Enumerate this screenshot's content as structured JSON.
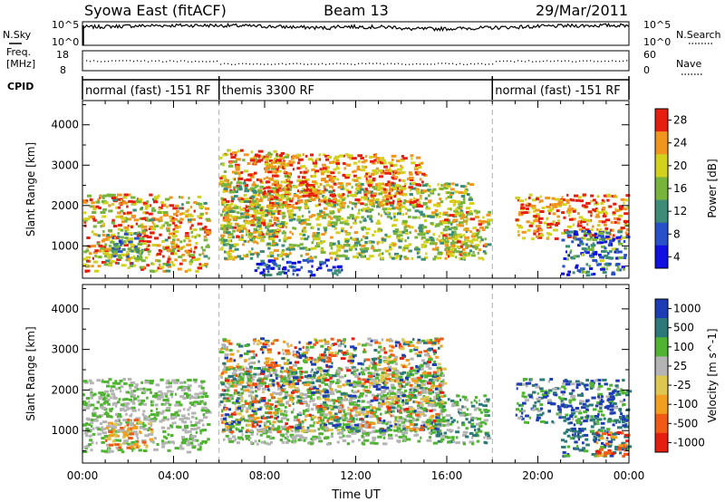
{
  "header": {
    "station": "Syowa East (fitACF)",
    "beam": "Beam 13",
    "date": "29/Mar/2011"
  },
  "strip_labels": {
    "nsky": "N.Sky",
    "nsearch": "N.Search",
    "freq_line1": "Freq.",
    "freq_line2": "[MHz]",
    "nave": "Nave",
    "cpid": "CPID",
    "sky_hi": "10^5",
    "sky_lo": "10^0",
    "search_hi": "10^5",
    "search_lo": "10^0",
    "freq_hi": "18",
    "freq_lo": "8",
    "nave_hi": "60",
    "nave_lo": "0"
  },
  "modes": [
    {
      "label": "normal (fast) -151 RF",
      "start_hour": 0,
      "end_hour": 6
    },
    {
      "label": "themis 3300 RF",
      "start_hour": 6,
      "end_hour": 18
    },
    {
      "label": "normal (fast) -151 RF",
      "start_hour": 18,
      "end_hour": 24
    }
  ],
  "chart_data": [
    {
      "type": "heatmap",
      "name": "power",
      "xlabel": "Time UT",
      "ylabel": "Slant Range [km]",
      "xlim": [
        0,
        24
      ],
      "ylim": [
        200,
        4600
      ],
      "x_ticks": [
        "00:00",
        "04:00",
        "08:00",
        "12:00",
        "16:00",
        "20:00",
        "00:00"
      ],
      "y_ticks": [
        "1000",
        "2000",
        "3000",
        "4000"
      ],
      "y_tick_values": [
        1000,
        2000,
        3000,
        4000
      ],
      "colorbar": {
        "label": "Power [dB]",
        "ticks": [
          "4",
          "8",
          "12",
          "16",
          "20",
          "24",
          "28"
        ],
        "colors": [
          "#1010e0",
          "#2850c8",
          "#3c8c78",
          "#78b43c",
          "#d2d21e",
          "#f0961e",
          "#e61e10"
        ]
      },
      "regions": [
        {
          "x": [
            0.0,
            5.5
          ],
          "y": [
            400,
            2300
          ],
          "level_range": [
            0.0,
            0.6
          ]
        },
        {
          "x": [
            1.0,
            2.5
          ],
          "y": [
            600,
            1400
          ],
          "level_range": [
            0.3,
            0.9
          ]
        },
        {
          "x": [
            6.0,
            9.0
          ],
          "y": [
            1200,
            3400
          ],
          "level_range": [
            0.0,
            0.5
          ]
        },
        {
          "x": [
            6.0,
            17.0
          ],
          "y": [
            700,
            2600
          ],
          "level_range": [
            0.2,
            0.7
          ]
        },
        {
          "x": [
            7.5,
            11.5
          ],
          "y": [
            300,
            700
          ],
          "level_range": [
            0.6,
            1.0
          ]
        },
        {
          "x": [
            8.0,
            15.0
          ],
          "y": [
            2000,
            3300
          ],
          "level_range": [
            0.0,
            0.4
          ]
        },
        {
          "x": [
            15.5,
            17.8
          ],
          "y": [
            700,
            1900
          ],
          "level_range": [
            0.1,
            0.6
          ]
        },
        {
          "x": [
            19.0,
            23.9
          ],
          "y": [
            1200,
            2300
          ],
          "level_range": [
            0.0,
            0.4
          ]
        },
        {
          "x": [
            21.0,
            23.9
          ],
          "y": [
            300,
            1400
          ],
          "level_range": [
            0.4,
            1.0
          ]
        }
      ]
    },
    {
      "type": "heatmap",
      "name": "velocity",
      "xlabel": "Time UT",
      "ylabel": "Slant Range [km]",
      "xlim": [
        0,
        24
      ],
      "ylim": [
        200,
        4600
      ],
      "x_ticks": [
        "00:00",
        "04:00",
        "08:00",
        "12:00",
        "16:00",
        "20:00",
        "00:00"
      ],
      "y_ticks": [
        "1000",
        "2000",
        "3000",
        "4000"
      ],
      "y_tick_values": [
        1000,
        2000,
        3000,
        4000
      ],
      "colorbar": {
        "label": "Velocity [m s^-1]",
        "ticks": [
          "1000",
          "500",
          "100",
          "25",
          "-25",
          "-100",
          "-500",
          "-1000"
        ],
        "colors": [
          "#1e3cb4",
          "#2d7878",
          "#50b432",
          "#b4b4b4",
          "#dcc850",
          "#f0a01e",
          "#f05a14",
          "#e61e10"
        ]
      },
      "regions": [
        {
          "x": [
            0.0,
            5.5
          ],
          "y": [
            500,
            2300
          ],
          "level_range": [
            0.3,
            0.45
          ]
        },
        {
          "x": [
            1.0,
            3.0
          ],
          "y": [
            600,
            1300
          ],
          "level_range": [
            0.45,
            0.85
          ]
        },
        {
          "x": [
            6.0,
            15.8
          ],
          "y": [
            700,
            2600
          ],
          "level_range": [
            0.3,
            0.45
          ]
        },
        {
          "x": [
            6.0,
            15.8
          ],
          "y": [
            1000,
            3300
          ],
          "level_range": [
            0.0,
            0.95
          ]
        },
        {
          "x": [
            15.5,
            17.8
          ],
          "y": [
            700,
            1900
          ],
          "level_range": [
            0.15,
            0.45
          ]
        },
        {
          "x": [
            19.0,
            23.9
          ],
          "y": [
            1200,
            2300
          ],
          "level_range": [
            0.0,
            0.45
          ]
        },
        {
          "x": [
            21.0,
            23.9
          ],
          "y": [
            400,
            1400
          ],
          "level_range": [
            0.05,
            0.3
          ]
        },
        {
          "x": [
            22.5,
            23.9
          ],
          "y": [
            400,
            1000
          ],
          "level_range": [
            0.6,
            0.95
          ]
        }
      ]
    }
  ]
}
